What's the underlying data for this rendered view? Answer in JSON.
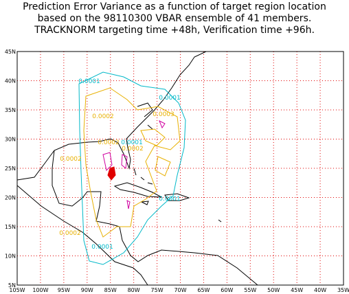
{
  "title": [
    "Prediction Error Variance as a function of target region location",
    "based on the 98110300 VBAR ensemble of 41 members.",
    "TRACKNORM targeting time +48h, Verification time +96h."
  ],
  "x_axis": [
    "105W",
    "100W",
    "95W",
    "90W",
    "85W",
    "80W",
    "75W",
    "70W",
    "65W",
    "60W",
    "55W",
    "50W",
    "45W",
    "40W",
    "35W"
  ],
  "y_axis": [
    "45N",
    "40N",
    "35N",
    "30N",
    "25N",
    "20N",
    "15N",
    "10N",
    "5N"
  ],
  "contour_labels": [
    "0.0001",
    "0.0001",
    "0.0002",
    "0.0003",
    "0.0002",
    "0.0001",
    "0.0002",
    "0.0002",
    "0.0001",
    "0.0002",
    "0.0001"
  ]
}
